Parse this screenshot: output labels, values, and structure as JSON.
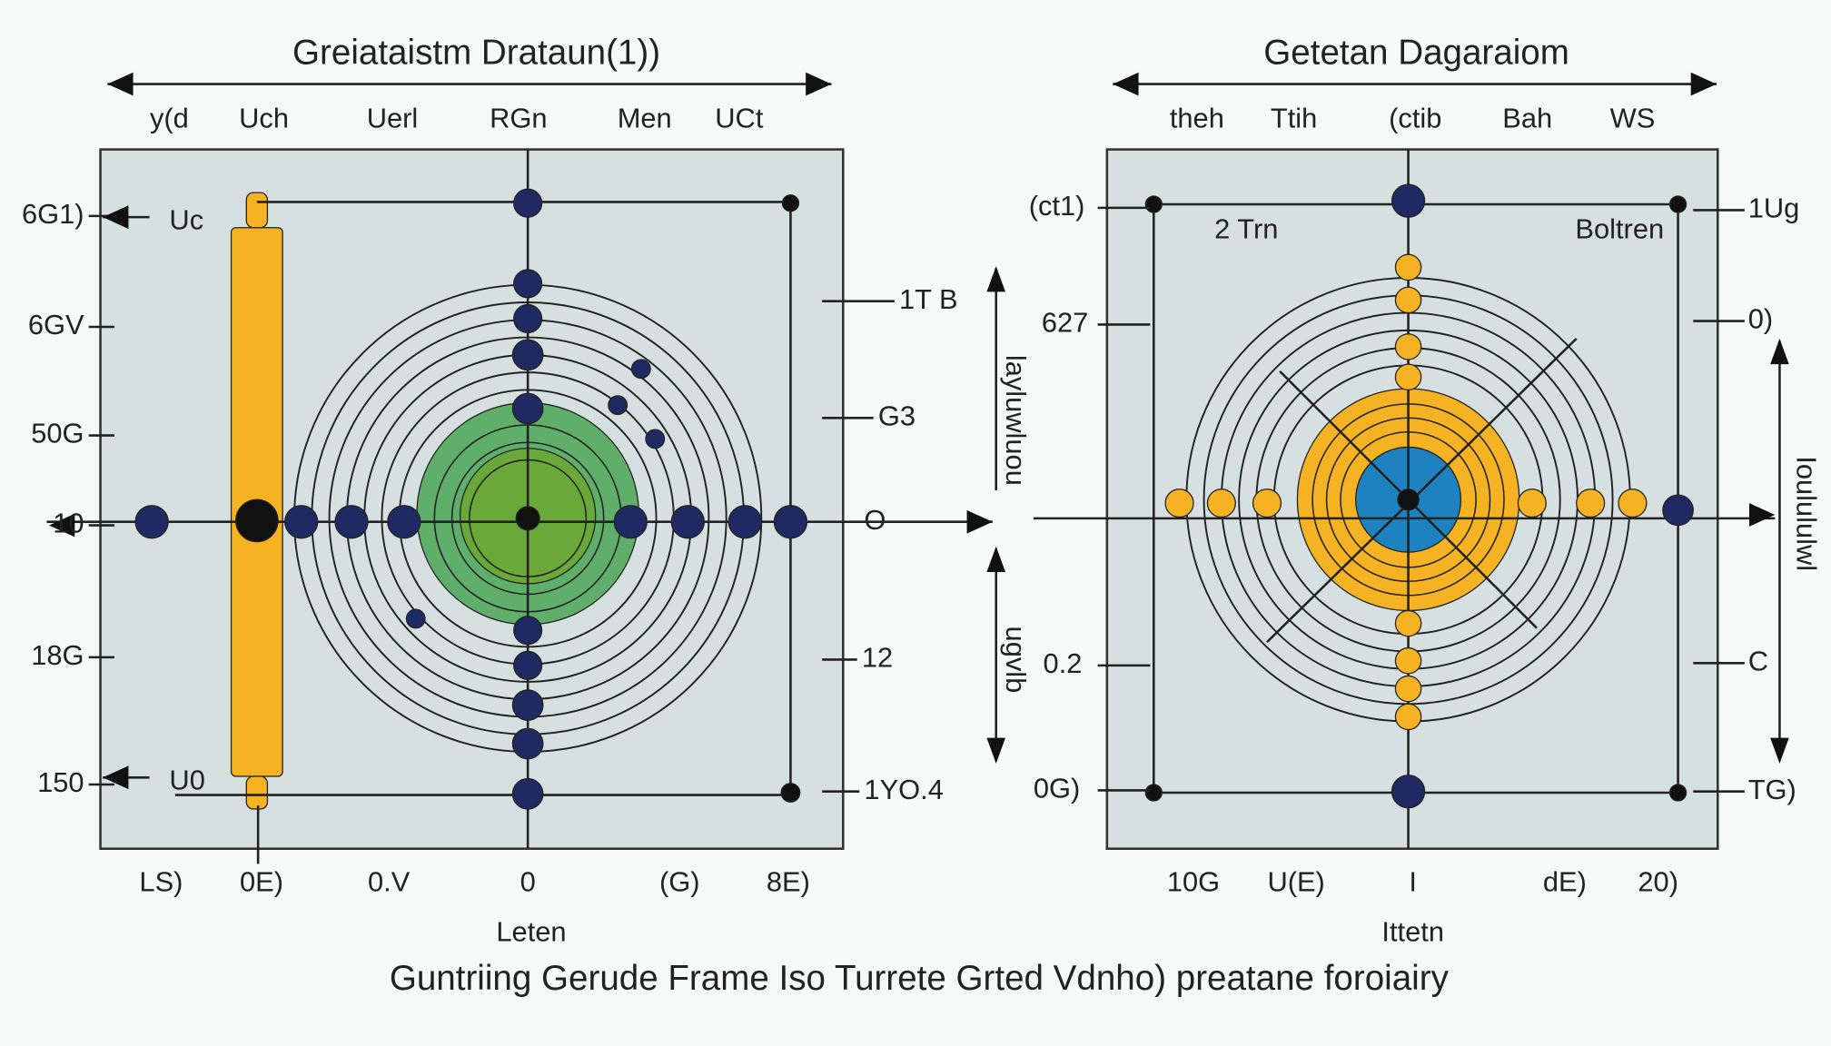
{
  "left_panel": {
    "title": "Greiataistm Drataun(1))",
    "top_labels": [
      "y(d",
      "Uch",
      "Uerl",
      "RGn",
      "Men",
      "UCt"
    ],
    "left_labels": [
      "6G1)",
      "6GV",
      "50G",
      "10",
      "18G",
      "150"
    ],
    "callouts": [
      "Uc",
      "U0"
    ],
    "right_labels": [
      "1T B",
      "G3",
      "O",
      "12",
      "1YO.4"
    ],
    "bottom_labels": [
      "LS)",
      "0E)",
      "0.V",
      "0",
      "(G)",
      "8E)"
    ],
    "x_label": "Leten"
  },
  "right_panel": {
    "title": "Getetan Dagaraiom",
    "top_labels": [
      "theh",
      "Ttih",
      "(ctib",
      "Bah",
      "WS"
    ],
    "left_labels": [
      "(ct1)",
      "627",
      "0.2",
      "0G)"
    ],
    "vertical_labels": [
      "layluwluou",
      "ugvlb",
      "Ioulululwl"
    ],
    "inner_labels": [
      "2 Trn",
      "Boltren"
    ],
    "right_labels": [
      "1Ug",
      "0)",
      "C",
      "TG)"
    ],
    "bottom_labels": [
      "10G",
      "U(E)",
      "I",
      "dE)",
      "20)"
    ],
    "x_label": "Ittetn"
  },
  "caption": "Guntriing Gerude Frame Iso Turrete Grted Vdnho) preatane foroiairy"
}
